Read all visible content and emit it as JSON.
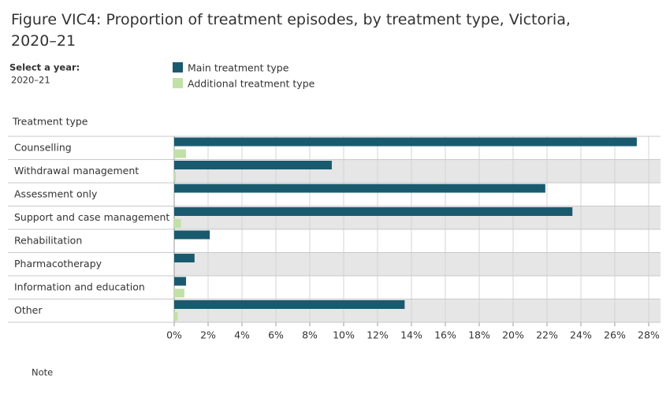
{
  "chart_data": {
    "type": "hbar",
    "title": "Figure VIC4: Proportion of treatment episodes, by treatment type, Victoria, 2020–21",
    "selector_label": "Select a year:",
    "selector_value": "2020–21",
    "y_label": "Treatment type",
    "note": "Note",
    "categories": [
      "Counselling",
      "Withdrawal management",
      "Assessment only",
      "Support and case management",
      "Rehabilitation",
      "Pharmacotherapy",
      "Information and education",
      "Other"
    ],
    "series": [
      {
        "name": "Main treatment type",
        "color": "#1a5a6e",
        "values": [
          27.3,
          9.3,
          21.9,
          23.5,
          2.1,
          1.2,
          0.7,
          13.6
        ]
      },
      {
        "name": "Additional treatment type",
        "color": "#c1e1a6",
        "values": [
          0.7,
          0.1,
          0,
          0.4,
          0,
          0,
          0.6,
          0.2
        ]
      }
    ],
    "xlim": [
      0,
      28.7
    ],
    "xticks": [
      {
        "value": 0,
        "label": "0%"
      },
      {
        "value": 2,
        "label": "2%"
      },
      {
        "value": 4,
        "label": "4%"
      },
      {
        "value": 6,
        "label": "6%"
      },
      {
        "value": 8,
        "label": "8%"
      },
      {
        "value": 10,
        "label": "10%"
      },
      {
        "value": 12,
        "label": "12%"
      },
      {
        "value": 14,
        "label": "14%"
      },
      {
        "value": 16,
        "label": "16%"
      },
      {
        "value": 18,
        "label": "18%"
      },
      {
        "value": 20,
        "label": "20%"
      },
      {
        "value": 22,
        "label": "22%"
      },
      {
        "value": 24,
        "label": "24%"
      },
      {
        "value": 26,
        "label": "26%"
      },
      {
        "value": 28,
        "label": "28%"
      }
    ],
    "grid": true
  }
}
